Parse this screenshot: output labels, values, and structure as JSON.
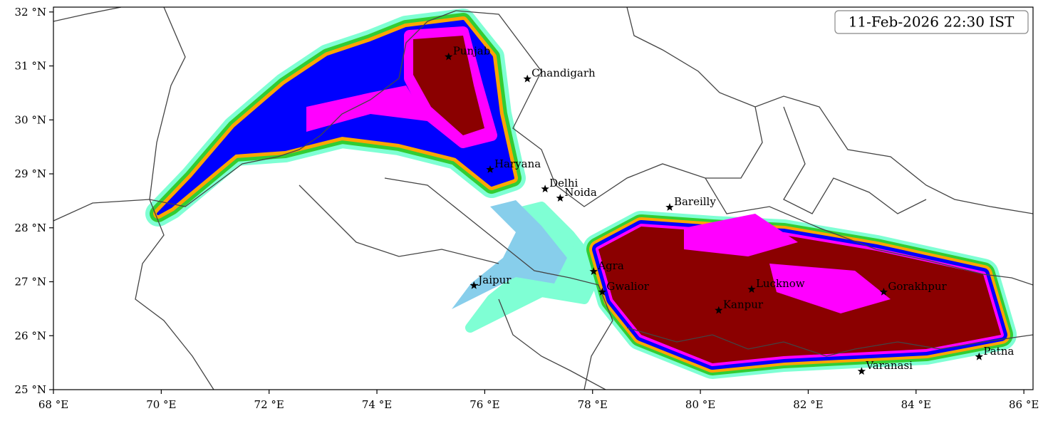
{
  "chart_data": {
    "type": "map",
    "title": "11-Feb-2026 22:30 IST",
    "xlim": [
      68,
      86.17
    ],
    "ylim": [
      25,
      32.09
    ],
    "xticks": [
      {
        "value": 68,
        "label": "68 °E"
      },
      {
        "value": 70,
        "label": "70 °E"
      },
      {
        "value": 72,
        "label": "72 °E"
      },
      {
        "value": 74,
        "label": "74 °E"
      },
      {
        "value": 76,
        "label": "76 °E"
      },
      {
        "value": 78,
        "label": "78 °E"
      },
      {
        "value": 80,
        "label": "80 °E"
      },
      {
        "value": 82,
        "label": "82 °E"
      },
      {
        "value": 84,
        "label": "84 °E"
      },
      {
        "value": 86,
        "label": "86 °E"
      }
    ],
    "yticks": [
      {
        "value": 25,
        "label": "25 °N"
      },
      {
        "value": 26,
        "label": "26 °N"
      },
      {
        "value": 27,
        "label": "27 °N"
      },
      {
        "value": 28,
        "label": "28 °N"
      },
      {
        "value": 29,
        "label": "29 °N"
      },
      {
        "value": 30,
        "label": "30 °N"
      },
      {
        "value": 31,
        "label": "31 °N"
      },
      {
        "value": 32,
        "label": "32 °N"
      }
    ],
    "points": [
      {
        "name": "Punjab",
        "lon": 75.33,
        "lat": 31.17
      },
      {
        "name": "Chandigarh",
        "lon": 76.79,
        "lat": 30.76
      },
      {
        "name": "Haryana",
        "lon": 76.1,
        "lat": 29.08
      },
      {
        "name": "Delhi",
        "lon": 77.12,
        "lat": 28.72
      },
      {
        "name": "Noida",
        "lon": 77.4,
        "lat": 28.55
      },
      {
        "name": "Bareilly",
        "lon": 79.43,
        "lat": 28.38
      },
      {
        "name": "Agra",
        "lon": 78.02,
        "lat": 27.19
      },
      {
        "name": "Jaipur",
        "lon": 75.8,
        "lat": 26.93
      },
      {
        "name": "Gwalior",
        "lon": 78.18,
        "lat": 26.81
      },
      {
        "name": "Lucknow",
        "lon": 80.95,
        "lat": 26.86
      },
      {
        "name": "Kanpur",
        "lon": 80.34,
        "lat": 26.47
      },
      {
        "name": "Gorakhpur",
        "lon": 83.4,
        "lat": 26.81
      },
      {
        "name": "Varanasi",
        "lon": 82.99,
        "lat": 25.34
      },
      {
        "name": "Patna",
        "lon": 85.17,
        "lat": 25.61
      }
    ]
  }
}
